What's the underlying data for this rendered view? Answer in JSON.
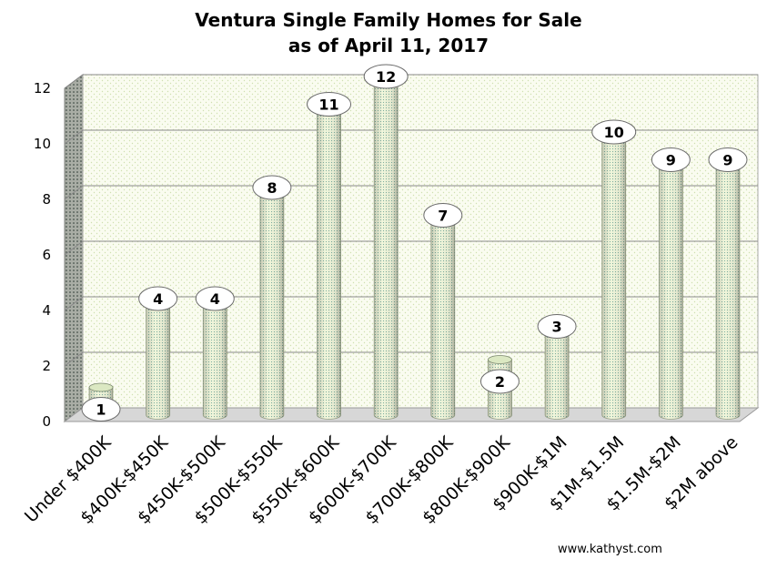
{
  "chart_data": {
    "type": "bar",
    "title": [
      "Ventura Single Family Homes for Sale",
      "as of April 11, 2017"
    ],
    "categories": [
      "Under $400K",
      "$400K-$450K",
      "$450K-$500K",
      "$500K-$550K",
      "$550K-$600K",
      "$600K-$700K",
      "$700K-$800K",
      "$800K-$900K",
      "$900K-$1M",
      "$1M-$1.5M",
      "$1.5M-$2M",
      "$2M above"
    ],
    "values": [
      1,
      4,
      4,
      8,
      11,
      12,
      7,
      2,
      3,
      10,
      9,
      9
    ],
    "ylim": [
      0,
      12
    ],
    "yticks": [
      0,
      2,
      4,
      6,
      8,
      10,
      12
    ],
    "grid": true,
    "data_labels": true,
    "style": "3d-cylinder"
  },
  "colors": {
    "bar_fill": "#f2f7dc",
    "bar_dots": "#7fb0a0",
    "bar_top": "#dbe8c2",
    "wall_fill": "#fafcf0",
    "wall_dots": "#cfe0b0",
    "side_fill": "#a9ada5",
    "grid": "#8a8a8a"
  },
  "watermark": "www.kathyst.com"
}
